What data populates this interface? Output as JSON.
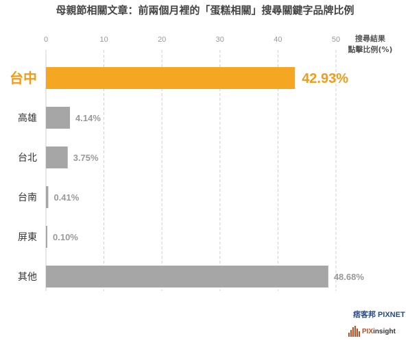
{
  "chart_data": {
    "type": "bar",
    "orientation": "horizontal",
    "title": "母親節相關文章：前兩個月裡的「蛋糕相關」搜尋關鍵字品牌比例",
    "axis_label": [
      "搜尋結果",
      "點擊比例(%)"
    ],
    "xlim": [
      0,
      50
    ],
    "xticks": [
      "0",
      "10",
      "20",
      "30",
      "40",
      "50"
    ],
    "grid": true,
    "categories": [
      "台中",
      "高雄",
      "台北",
      "台南",
      "屏東",
      "其他"
    ],
    "values": [
      42.93,
      4.14,
      3.75,
      0.41,
      0.1,
      48.68
    ],
    "value_labels": [
      "42.93%",
      "4.14%",
      "3.75%",
      "0.41%",
      "0.10%",
      "48.68%"
    ],
    "highlight_index": 0,
    "colors": {
      "highlight": "#f5a623",
      "normal": "#a6a6a6",
      "highlight_text": "#f29b1a"
    }
  },
  "logos": {
    "pixnet_label": "痞客邦 PIXNET",
    "pixinsight_prefix": "PIX",
    "pixinsight_suffix": "insight"
  }
}
